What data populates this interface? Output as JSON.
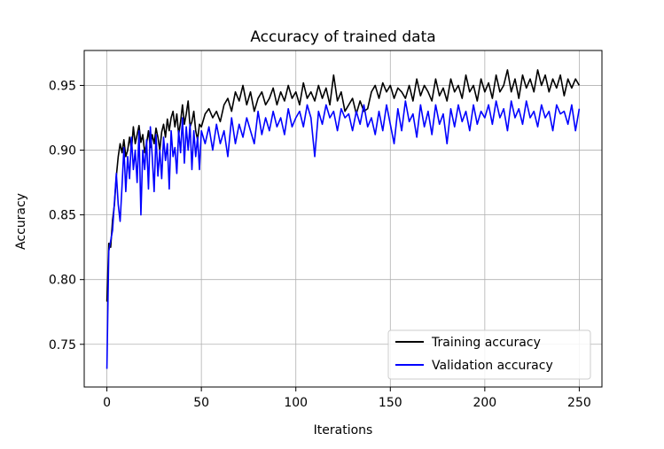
{
  "chart_data": {
    "type": "line",
    "title": "Accuracy of trained data",
    "xlabel": "Iterations",
    "ylabel": "Accuracy",
    "xlim": [
      -12,
      262
    ],
    "ylim": [
      0.717,
      0.977
    ],
    "xticks": [
      0,
      50,
      100,
      150,
      200,
      250
    ],
    "xtick_labels": [
      "0",
      "50",
      "100",
      "150",
      "200",
      "250"
    ],
    "yticks": [
      0.75,
      0.8,
      0.85,
      0.9,
      0.95
    ],
    "ytick_labels": [
      "0.75",
      "0.80",
      "0.85",
      "0.90",
      "0.95"
    ],
    "grid": true,
    "legend_position": "lower-right",
    "series": [
      {
        "name": "Training accuracy",
        "color": "#000000",
        "keypoints": [
          [
            0,
            0.783
          ],
          [
            1,
            0.828
          ],
          [
            2,
            0.825
          ],
          [
            3,
            0.846
          ],
          [
            4,
            0.858
          ],
          [
            5,
            0.88
          ],
          [
            6,
            0.895
          ],
          [
            7,
            0.905
          ],
          [
            8,
            0.898
          ],
          [
            9,
            0.908
          ],
          [
            10,
            0.895
          ],
          [
            11,
            0.9
          ],
          [
            12,
            0.91
          ],
          [
            13,
            0.9
          ],
          [
            14,
            0.918
          ],
          [
            15,
            0.905
          ],
          [
            16,
            0.912
          ],
          [
            17,
            0.919
          ],
          [
            18,
            0.906
          ],
          [
            19,
            0.912
          ],
          [
            20,
            0.898
          ],
          [
            21,
            0.905
          ],
          [
            22,
            0.915
          ],
          [
            23,
            0.902
          ],
          [
            24,
            0.912
          ],
          [
            25,
            0.905
          ],
          [
            26,
            0.917
          ],
          [
            27,
            0.91
          ],
          [
            28,
            0.9
          ],
          [
            29,
            0.914
          ],
          [
            30,
            0.92
          ],
          [
            31,
            0.91
          ],
          [
            32,
            0.924
          ],
          [
            33,
            0.915
          ],
          [
            34,
            0.925
          ],
          [
            35,
            0.93
          ],
          [
            36,
            0.918
          ],
          [
            37,
            0.928
          ],
          [
            38,
            0.912
          ],
          [
            39,
            0.922
          ],
          [
            40,
            0.935
          ],
          [
            41,
            0.92
          ],
          [
            42,
            0.928
          ],
          [
            43,
            0.938
          ],
          [
            44,
            0.918
          ],
          [
            45,
            0.922
          ],
          [
            46,
            0.93
          ],
          [
            47,
            0.915
          ],
          [
            48,
            0.908
          ],
          [
            49,
            0.92
          ],
          [
            50,
            0.918
          ],
          [
            52,
            0.928
          ],
          [
            54,
            0.932
          ],
          [
            56,
            0.925
          ],
          [
            58,
            0.93
          ],
          [
            60,
            0.922
          ],
          [
            62,
            0.935
          ],
          [
            64,
            0.94
          ],
          [
            66,
            0.93
          ],
          [
            68,
            0.945
          ],
          [
            70,
            0.938
          ],
          [
            72,
            0.95
          ],
          [
            74,
            0.935
          ],
          [
            76,
            0.945
          ],
          [
            78,
            0.93
          ],
          [
            80,
            0.94
          ],
          [
            82,
            0.945
          ],
          [
            84,
            0.935
          ],
          [
            86,
            0.94
          ],
          [
            88,
            0.948
          ],
          [
            90,
            0.935
          ],
          [
            92,
            0.945
          ],
          [
            94,
            0.938
          ],
          [
            96,
            0.95
          ],
          [
            98,
            0.94
          ],
          [
            100,
            0.945
          ],
          [
            102,
            0.935
          ],
          [
            104,
            0.952
          ],
          [
            106,
            0.94
          ],
          [
            108,
            0.945
          ],
          [
            110,
            0.938
          ],
          [
            112,
            0.95
          ],
          [
            114,
            0.94
          ],
          [
            116,
            0.948
          ],
          [
            118,
            0.935
          ],
          [
            120,
            0.958
          ],
          [
            122,
            0.938
          ],
          [
            124,
            0.945
          ],
          [
            126,
            0.93
          ],
          [
            128,
            0.935
          ],
          [
            130,
            0.94
          ],
          [
            132,
            0.928
          ],
          [
            134,
            0.938
          ],
          [
            136,
            0.93
          ],
          [
            138,
            0.932
          ],
          [
            140,
            0.945
          ],
          [
            142,
            0.95
          ],
          [
            144,
            0.94
          ],
          [
            146,
            0.952
          ],
          [
            148,
            0.945
          ],
          [
            150,
            0.95
          ],
          [
            152,
            0.94
          ],
          [
            154,
            0.948
          ],
          [
            156,
            0.945
          ],
          [
            158,
            0.94
          ],
          [
            160,
            0.95
          ],
          [
            162,
            0.938
          ],
          [
            164,
            0.955
          ],
          [
            166,
            0.942
          ],
          [
            168,
            0.95
          ],
          [
            170,
            0.945
          ],
          [
            172,
            0.938
          ],
          [
            174,
            0.955
          ],
          [
            176,
            0.942
          ],
          [
            178,
            0.948
          ],
          [
            180,
            0.938
          ],
          [
            182,
            0.955
          ],
          [
            184,
            0.945
          ],
          [
            186,
            0.95
          ],
          [
            188,
            0.94
          ],
          [
            190,
            0.958
          ],
          [
            192,
            0.945
          ],
          [
            194,
            0.95
          ],
          [
            196,
            0.938
          ],
          [
            198,
            0.955
          ],
          [
            200,
            0.945
          ],
          [
            202,
            0.952
          ],
          [
            204,
            0.94
          ],
          [
            206,
            0.958
          ],
          [
            208,
            0.945
          ],
          [
            210,
            0.95
          ],
          [
            212,
            0.962
          ],
          [
            214,
            0.945
          ],
          [
            216,
            0.955
          ],
          [
            218,
            0.94
          ],
          [
            220,
            0.958
          ],
          [
            222,
            0.948
          ],
          [
            224,
            0.955
          ],
          [
            226,
            0.945
          ],
          [
            228,
            0.962
          ],
          [
            230,
            0.95
          ],
          [
            232,
            0.958
          ],
          [
            234,
            0.945
          ],
          [
            236,
            0.955
          ],
          [
            238,
            0.948
          ],
          [
            240,
            0.958
          ],
          [
            242,
            0.942
          ],
          [
            244,
            0.955
          ],
          [
            246,
            0.948
          ],
          [
            248,
            0.955
          ],
          [
            250,
            0.95
          ]
        ]
      },
      {
        "name": "Validation accuracy",
        "color": "#0000ff",
        "keypoints": [
          [
            0,
            0.731
          ],
          [
            1,
            0.822
          ],
          [
            2,
            0.83
          ],
          [
            3,
            0.838
          ],
          [
            4,
            0.86
          ],
          [
            5,
            0.882
          ],
          [
            6,
            0.858
          ],
          [
            7,
            0.845
          ],
          [
            8,
            0.872
          ],
          [
            9,
            0.902
          ],
          [
            10,
            0.868
          ],
          [
            11,
            0.895
          ],
          [
            12,
            0.878
          ],
          [
            13,
            0.91
          ],
          [
            14,
            0.885
          ],
          [
            15,
            0.9
          ],
          [
            16,
            0.875
          ],
          [
            17,
            0.915
          ],
          [
            18,
            0.85
          ],
          [
            19,
            0.9
          ],
          [
            20,
            0.885
          ],
          [
            21,
            0.908
          ],
          [
            22,
            0.87
          ],
          [
            23,
            0.918
          ],
          [
            24,
            0.895
          ],
          [
            25,
            0.868
          ],
          [
            26,
            0.912
          ],
          [
            27,
            0.88
          ],
          [
            28,
            0.9
          ],
          [
            29,
            0.878
          ],
          [
            30,
            0.91
          ],
          [
            31,
            0.892
          ],
          [
            32,
            0.905
          ],
          [
            33,
            0.87
          ],
          [
            34,
            0.915
          ],
          [
            35,
            0.895
          ],
          [
            36,
            0.902
          ],
          [
            37,
            0.882
          ],
          [
            38,
            0.915
          ],
          [
            39,
            0.898
          ],
          [
            40,
            0.925
          ],
          [
            41,
            0.89
          ],
          [
            42,
            0.918
          ],
          [
            43,
            0.9
          ],
          [
            44,
            0.92
          ],
          [
            45,
            0.885
          ],
          [
            46,
            0.915
          ],
          [
            47,
            0.895
          ],
          [
            48,
            0.91
          ],
          [
            49,
            0.885
          ],
          [
            50,
            0.915
          ],
          [
            52,
            0.905
          ],
          [
            54,
            0.918
          ],
          [
            56,
            0.9
          ],
          [
            58,
            0.92
          ],
          [
            60,
            0.905
          ],
          [
            62,
            0.915
          ],
          [
            64,
            0.895
          ],
          [
            66,
            0.925
          ],
          [
            68,
            0.905
          ],
          [
            70,
            0.92
          ],
          [
            72,
            0.91
          ],
          [
            74,
            0.925
          ],
          [
            76,
            0.915
          ],
          [
            78,
            0.905
          ],
          [
            80,
            0.93
          ],
          [
            82,
            0.912
          ],
          [
            84,
            0.925
          ],
          [
            86,
            0.915
          ],
          [
            88,
            0.93
          ],
          [
            90,
            0.918
          ],
          [
            92,
            0.925
          ],
          [
            94,
            0.912
          ],
          [
            96,
            0.932
          ],
          [
            98,
            0.918
          ],
          [
            100,
            0.925
          ],
          [
            102,
            0.93
          ],
          [
            104,
            0.918
          ],
          [
            106,
            0.935
          ],
          [
            108,
            0.925
          ],
          [
            110,
            0.895
          ],
          [
            112,
            0.93
          ],
          [
            114,
            0.92
          ],
          [
            116,
            0.935
          ],
          [
            118,
            0.925
          ],
          [
            120,
            0.93
          ],
          [
            122,
            0.915
          ],
          [
            124,
            0.932
          ],
          [
            126,
            0.925
          ],
          [
            128,
            0.928
          ],
          [
            130,
            0.915
          ],
          [
            132,
            0.93
          ],
          [
            134,
            0.92
          ],
          [
            136,
            0.935
          ],
          [
            138,
            0.918
          ],
          [
            140,
            0.925
          ],
          [
            142,
            0.912
          ],
          [
            144,
            0.93
          ],
          [
            146,
            0.915
          ],
          [
            148,
            0.935
          ],
          [
            150,
            0.92
          ],
          [
            152,
            0.905
          ],
          [
            154,
            0.932
          ],
          [
            156,
            0.915
          ],
          [
            158,
            0.938
          ],
          [
            160,
            0.922
          ],
          [
            162,
            0.928
          ],
          [
            164,
            0.91
          ],
          [
            166,
            0.935
          ],
          [
            168,
            0.918
          ],
          [
            170,
            0.93
          ],
          [
            172,
            0.912
          ],
          [
            174,
            0.935
          ],
          [
            176,
            0.92
          ],
          [
            178,
            0.928
          ],
          [
            180,
            0.905
          ],
          [
            182,
            0.932
          ],
          [
            184,
            0.918
          ],
          [
            186,
            0.935
          ],
          [
            188,
            0.922
          ],
          [
            190,
            0.93
          ],
          [
            192,
            0.915
          ],
          [
            194,
            0.935
          ],
          [
            196,
            0.92
          ],
          [
            198,
            0.93
          ],
          [
            200,
            0.925
          ],
          [
            202,
            0.935
          ],
          [
            204,
            0.92
          ],
          [
            206,
            0.938
          ],
          [
            208,
            0.925
          ],
          [
            210,
            0.932
          ],
          [
            212,
            0.915
          ],
          [
            214,
            0.938
          ],
          [
            216,
            0.925
          ],
          [
            218,
            0.932
          ],
          [
            220,
            0.92
          ],
          [
            222,
            0.938
          ],
          [
            224,
            0.925
          ],
          [
            226,
            0.93
          ],
          [
            228,
            0.918
          ],
          [
            230,
            0.935
          ],
          [
            232,
            0.925
          ],
          [
            234,
            0.93
          ],
          [
            236,
            0.915
          ],
          [
            238,
            0.935
          ],
          [
            240,
            0.928
          ],
          [
            242,
            0.93
          ],
          [
            244,
            0.92
          ],
          [
            246,
            0.935
          ],
          [
            248,
            0.915
          ],
          [
            250,
            0.932
          ]
        ]
      }
    ]
  }
}
